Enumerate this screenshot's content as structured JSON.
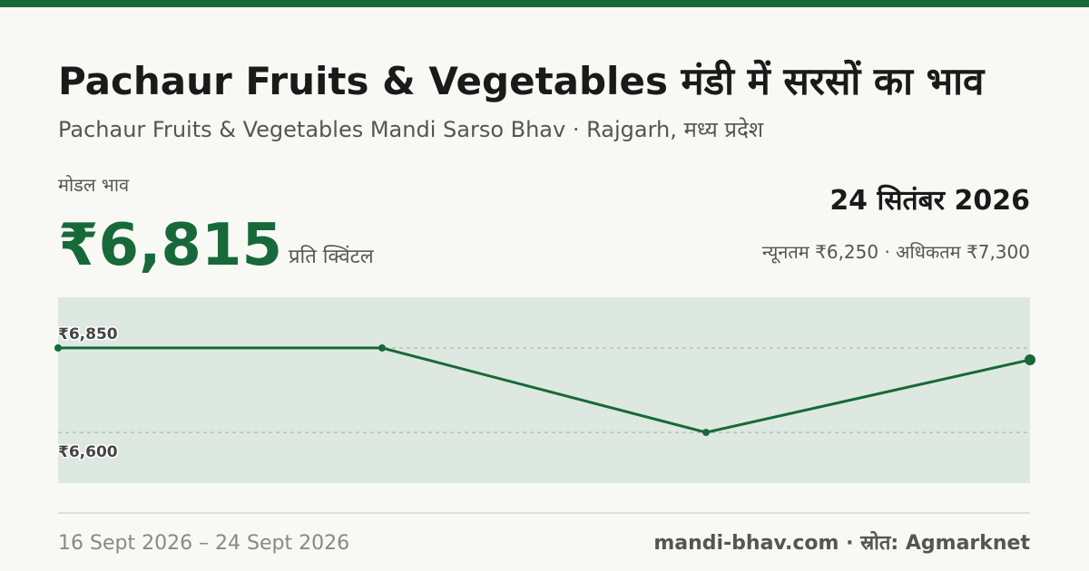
{
  "header": {
    "title": "Pachaur Fruits & Vegetables मंडी में सरसों का भाव",
    "subtitle": "Pachaur Fruits & Vegetables Mandi Sarso Bhav · Rajgarh, मध्य प्रदेश"
  },
  "price": {
    "label": "मोडल भाव",
    "value": "₹6,815",
    "unit": "प्रति क्विंटल",
    "date": "24 सितंबर 2026",
    "range": "न्यूनतम ₹6,250 · अधिकतम ₹7,300"
  },
  "chart_data": {
    "type": "line",
    "categories": [
      null,
      null,
      null,
      null
    ],
    "values": [
      6850,
      6850,
      6600,
      6815
    ],
    "color": "#17693a",
    "ylim": [
      6450,
      7000
    ],
    "yticks": [
      {
        "value": 6600,
        "label": "₹6,600"
      },
      {
        "value": 6850,
        "label": "₹6,850"
      }
    ],
    "grid": true
  },
  "footer": {
    "period": "16 Sept 2026 – 24 Sept 2026",
    "source": "mandi-bhav.com · स्रोत: Agmarknet"
  }
}
